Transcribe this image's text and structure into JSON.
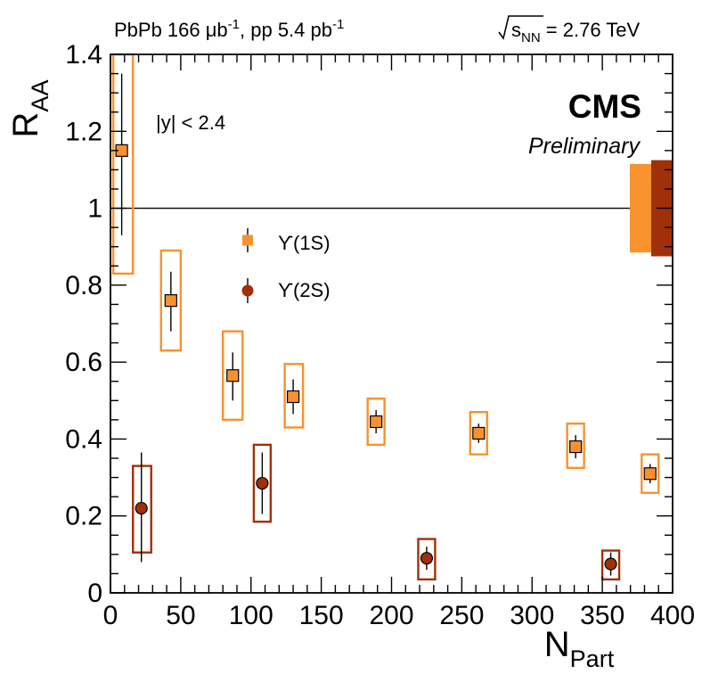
{
  "chart_data": {
    "type": "scatter",
    "title_left": {
      "prefix": "PbPb 166 ",
      "lumi_unit": "μb",
      "exp1": "-1",
      "mid": ", pp 5.4 pb",
      "exp2": "-1"
    },
    "title_right": {
      "sub": "NN",
      "rest": " = 2.76 TeV"
    },
    "brand": "CMS",
    "brand_sub": "Preliminary",
    "annotation": "|y| < 2.4",
    "xlabel": {
      "main": "N",
      "sub": "Part"
    },
    "ylabel": {
      "main": "R",
      "sub": "AA"
    },
    "xlim": [
      0,
      400
    ],
    "ylim": [
      0,
      1.4
    ],
    "x_ticks": [
      0,
      50,
      100,
      150,
      200,
      250,
      300,
      350,
      400
    ],
    "x_tick_labels": [
      "0",
      "50",
      "100",
      "150",
      "200",
      "250",
      "300",
      "350",
      "400"
    ],
    "y_ticks": [
      0,
      0.2,
      0.4,
      0.6,
      0.8,
      1.0,
      1.2,
      1.4
    ],
    "y_tick_labels": [
      "0",
      "0.2",
      "0.4",
      "0.6",
      "0.8",
      "1",
      "1.2",
      "1.4"
    ],
    "reference_line": 1.0,
    "global_uncertainty": [
      {
        "series": "1S",
        "low": 0.885,
        "high": 1.115,
        "color": "#f7922f"
      },
      {
        "series": "2S",
        "low": 0.875,
        "high": 1.125,
        "color": "#a0300a"
      }
    ],
    "series": [
      {
        "name": "Υ(1S)",
        "legend_label": "ϒ(1S)",
        "marker": "square",
        "color": "#f7922f",
        "points": [
          {
            "x": 8,
            "y": 1.15,
            "stat_lo": 0.93,
            "stat_hi": 1.35,
            "sys_lo": 0.83,
            "sys_hi": 1.4,
            "box_xlo": 2,
            "box_xhi": 16
          },
          {
            "x": 43,
            "y": 0.76,
            "stat_lo": 0.68,
            "stat_hi": 0.835,
            "sys_lo": 0.63,
            "sys_hi": 0.89,
            "box_xlo": 36,
            "box_xhi": 50
          },
          {
            "x": 87,
            "y": 0.565,
            "stat_lo": 0.5,
            "stat_hi": 0.625,
            "sys_lo": 0.45,
            "sys_hi": 0.68,
            "box_xlo": 80,
            "box_xhi": 94
          },
          {
            "x": 130,
            "y": 0.51,
            "stat_lo": 0.465,
            "stat_hi": 0.555,
            "sys_lo": 0.43,
            "sys_hi": 0.595,
            "box_xlo": 124,
            "box_xhi": 137
          },
          {
            "x": 189,
            "y": 0.445,
            "stat_lo": 0.415,
            "stat_hi": 0.475,
            "sys_lo": 0.385,
            "sys_hi": 0.505,
            "box_xlo": 183,
            "box_xhi": 195
          },
          {
            "x": 262,
            "y": 0.415,
            "stat_lo": 0.39,
            "stat_hi": 0.44,
            "sys_lo": 0.36,
            "sys_hi": 0.47,
            "box_xlo": 256,
            "box_xhi": 268
          },
          {
            "x": 331,
            "y": 0.38,
            "stat_lo": 0.35,
            "stat_hi": 0.41,
            "sys_lo": 0.325,
            "sys_hi": 0.44,
            "box_xlo": 325,
            "box_xhi": 337
          },
          {
            "x": 384,
            "y": 0.31,
            "stat_lo": 0.285,
            "stat_hi": 0.335,
            "sys_lo": 0.26,
            "sys_hi": 0.36,
            "box_xlo": 378,
            "box_xhi": 390
          }
        ]
      },
      {
        "name": "Υ(2S)",
        "legend_label": "ϒ(2S)",
        "marker": "circle",
        "color": "#a0300a",
        "points": [
          {
            "x": 22,
            "y": 0.22,
            "stat_lo": 0.08,
            "stat_hi": 0.365,
            "sys_lo": 0.105,
            "sys_hi": 0.33,
            "box_xlo": 16,
            "box_xhi": 29
          },
          {
            "x": 108,
            "y": 0.285,
            "stat_lo": 0.205,
            "stat_hi": 0.365,
            "sys_lo": 0.185,
            "sys_hi": 0.385,
            "box_xlo": 102,
            "box_xhi": 114
          },
          {
            "x": 225,
            "y": 0.09,
            "stat_lo": 0.06,
            "stat_hi": 0.12,
            "sys_lo": 0.035,
            "sys_hi": 0.14,
            "box_xlo": 219,
            "box_xhi": 231
          },
          {
            "x": 356,
            "y": 0.075,
            "stat_lo": 0.045,
            "stat_hi": 0.105,
            "sys_lo": 0.035,
            "sys_hi": 0.11,
            "box_xlo": 350,
            "box_xhi": 362
          }
        ]
      }
    ]
  }
}
